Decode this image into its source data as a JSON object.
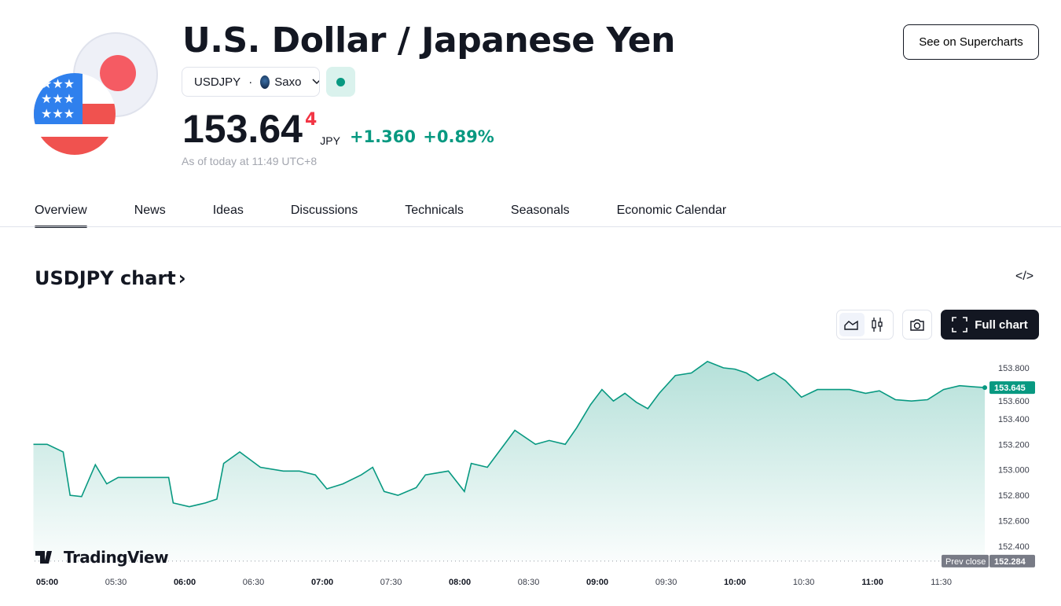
{
  "header": {
    "title": "U.S. Dollar / Japanese Yen",
    "supercharts_label": "See on Supercharts",
    "symbol": "USDJPY",
    "separator": "·",
    "exchange": "Saxo",
    "market_status": "open",
    "price_main": "153.64",
    "price_last_digit": "4",
    "currency": "JPY",
    "change": "+1.360",
    "change_pct": "+0.89%",
    "as_of": "As of today at 11:49 UTC+8"
  },
  "tabs": [
    {
      "label": "Overview",
      "active": true
    },
    {
      "label": "News"
    },
    {
      "label": "Ideas"
    },
    {
      "label": "Discussions"
    },
    {
      "label": "Technicals"
    },
    {
      "label": "Seasonals"
    },
    {
      "label": "Economic Calendar"
    }
  ],
  "chart_section": {
    "title": "USDJPY chart",
    "chevron": "›",
    "embed_icon": "</>",
    "full_chart_label": "Full chart",
    "logo_text": "TradingView"
  },
  "colors": {
    "accent": "#089981",
    "negative": "#f23645",
    "dark": "#131722"
  },
  "chart_data": {
    "type": "area",
    "ylim": [
      152.284,
      153.9
    ],
    "yticks": [
      "153.800",
      "153.600",
      "153.400",
      "153.200",
      "153.000",
      "152.800",
      "152.600",
      "152.400"
    ],
    "xticks": [
      {
        "label": "05:00",
        "bold": true
      },
      {
        "label": "05:30"
      },
      {
        "label": "06:00",
        "bold": true
      },
      {
        "label": "06:30"
      },
      {
        "label": "07:00",
        "bold": true
      },
      {
        "label": "07:30"
      },
      {
        "label": "08:00",
        "bold": true
      },
      {
        "label": "08:30"
      },
      {
        "label": "09:00",
        "bold": true
      },
      {
        "label": "09:30"
      },
      {
        "label": "10:00",
        "bold": true
      },
      {
        "label": "10:30"
      },
      {
        "label": "11:00",
        "bold": true
      },
      {
        "label": "11:30"
      }
    ],
    "last_value": "153.645",
    "prev_close_label": "Prev close",
    "prev_close": "152.284",
    "points": [
      [
        "04:54",
        153.2
      ],
      [
        "05:00",
        153.2
      ],
      [
        "05:07",
        153.14
      ],
      [
        "05:10",
        152.8
      ],
      [
        "05:15",
        152.79
      ],
      [
        "05:21",
        153.04
      ],
      [
        "05:26",
        152.89
      ],
      [
        "05:31",
        152.94
      ],
      [
        "05:45",
        152.94
      ],
      [
        "05:53",
        152.94
      ],
      [
        "05:55",
        152.74
      ],
      [
        "06:02",
        152.71
      ],
      [
        "06:09",
        152.74
      ],
      [
        "06:14",
        152.77
      ],
      [
        "06:17",
        153.05
      ],
      [
        "06:24",
        153.14
      ],
      [
        "06:33",
        153.02
      ],
      [
        "06:43",
        152.99
      ],
      [
        "06:50",
        152.99
      ],
      [
        "06:57",
        152.96
      ],
      [
        "07:02",
        152.85
      ],
      [
        "07:09",
        152.89
      ],
      [
        "07:17",
        152.96
      ],
      [
        "07:22",
        153.02
      ],
      [
        "07:27",
        152.83
      ],
      [
        "07:33",
        152.8
      ],
      [
        "07:41",
        152.86
      ],
      [
        "07:45",
        152.96
      ],
      [
        "07:55",
        152.99
      ],
      [
        "08:02",
        152.83
      ],
      [
        "08:05",
        153.05
      ],
      [
        "08:12",
        153.02
      ],
      [
        "08:17",
        153.14
      ],
      [
        "08:24",
        153.31
      ],
      [
        "08:33",
        153.2
      ],
      [
        "08:39",
        153.23
      ],
      [
        "08:46",
        153.2
      ],
      [
        "08:51",
        153.33
      ],
      [
        "08:57",
        153.51
      ],
      [
        "09:02",
        153.63
      ],
      [
        "09:07",
        153.54
      ],
      [
        "09:12",
        153.6
      ],
      [
        "09:17",
        153.53
      ],
      [
        "09:22",
        153.48
      ],
      [
        "09:27",
        153.6
      ],
      [
        "09:34",
        153.74
      ],
      [
        "09:41",
        153.76
      ],
      [
        "09:48",
        153.85
      ],
      [
        "09:55",
        153.8
      ],
      [
        "10:00",
        153.79
      ],
      [
        "10:05",
        153.76
      ],
      [
        "10:10",
        153.7
      ],
      [
        "10:17",
        153.76
      ],
      [
        "10:22",
        153.7
      ],
      [
        "10:29",
        153.57
      ],
      [
        "10:36",
        153.63
      ],
      [
        "10:43",
        153.63
      ],
      [
        "10:50",
        153.63
      ],
      [
        "10:57",
        153.6
      ],
      [
        "11:03",
        153.62
      ],
      [
        "11:10",
        153.55
      ],
      [
        "11:17",
        153.54
      ],
      [
        "11:24",
        153.55
      ],
      [
        "11:31",
        153.63
      ],
      [
        "11:38",
        153.66
      ],
      [
        "11:45",
        153.65
      ],
      [
        "11:49",
        153.645
      ]
    ]
  }
}
